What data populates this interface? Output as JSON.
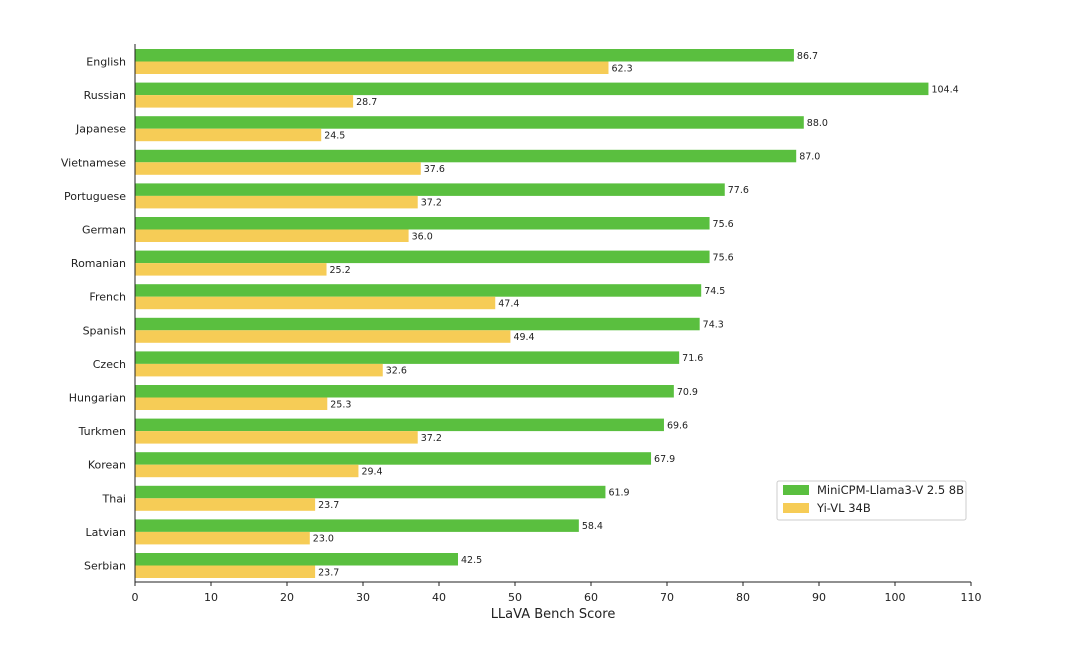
{
  "chart_data": {
    "type": "bar",
    "orientation": "horizontal",
    "categories": [
      "English",
      "Russian",
      "Japanese",
      "Vietnamese",
      "Portuguese",
      "German",
      "Romanian",
      "French",
      "Spanish",
      "Czech",
      "Hungarian",
      "Turkmen",
      "Korean",
      "Thai",
      "Latvian",
      "Serbian"
    ],
    "series": [
      {
        "name": "MiniCPM-Llama3-V 2.5 8B",
        "color": "#5abf3f",
        "values": [
          86.7,
          104.4,
          88.0,
          87.0,
          77.6,
          75.6,
          75.6,
          74.5,
          74.3,
          71.6,
          70.9,
          69.6,
          67.9,
          61.9,
          58.4,
          42.5
        ],
        "labels": [
          "86.7",
          "104.4",
          "88.0",
          "87.0",
          "77.6",
          "75.6",
          "75.6",
          "74.5",
          "74.3",
          "71.6",
          "70.9",
          "69.6",
          "67.9",
          "61.9",
          "58.4",
          "42.5"
        ]
      },
      {
        "name": "Yi-VL 34B",
        "color": "#f6cc56",
        "values": [
          62.3,
          28.7,
          24.5,
          37.6,
          37.2,
          36.0,
          25.2,
          47.4,
          49.4,
          32.6,
          25.3,
          37.2,
          29.4,
          23.7,
          23.0,
          23.7
        ],
        "labels": [
          "62.3",
          "28.7",
          "24.5",
          "37.6",
          "37.2",
          "36.0",
          "25.2",
          "47.4",
          "49.4",
          "32.6",
          "25.3",
          "37.2",
          "29.4",
          "23.7",
          "23.0",
          "23.7"
        ]
      }
    ],
    "xlabel": "LLaVA Bench Score",
    "ylabel": "",
    "title": "",
    "xlim": [
      0,
      110
    ],
    "xticks": [
      "0",
      "10",
      "20",
      "30",
      "40",
      "50",
      "60",
      "70",
      "80",
      "90",
      "100",
      "110"
    ],
    "grid": false,
    "legend_position": "lower-right"
  }
}
